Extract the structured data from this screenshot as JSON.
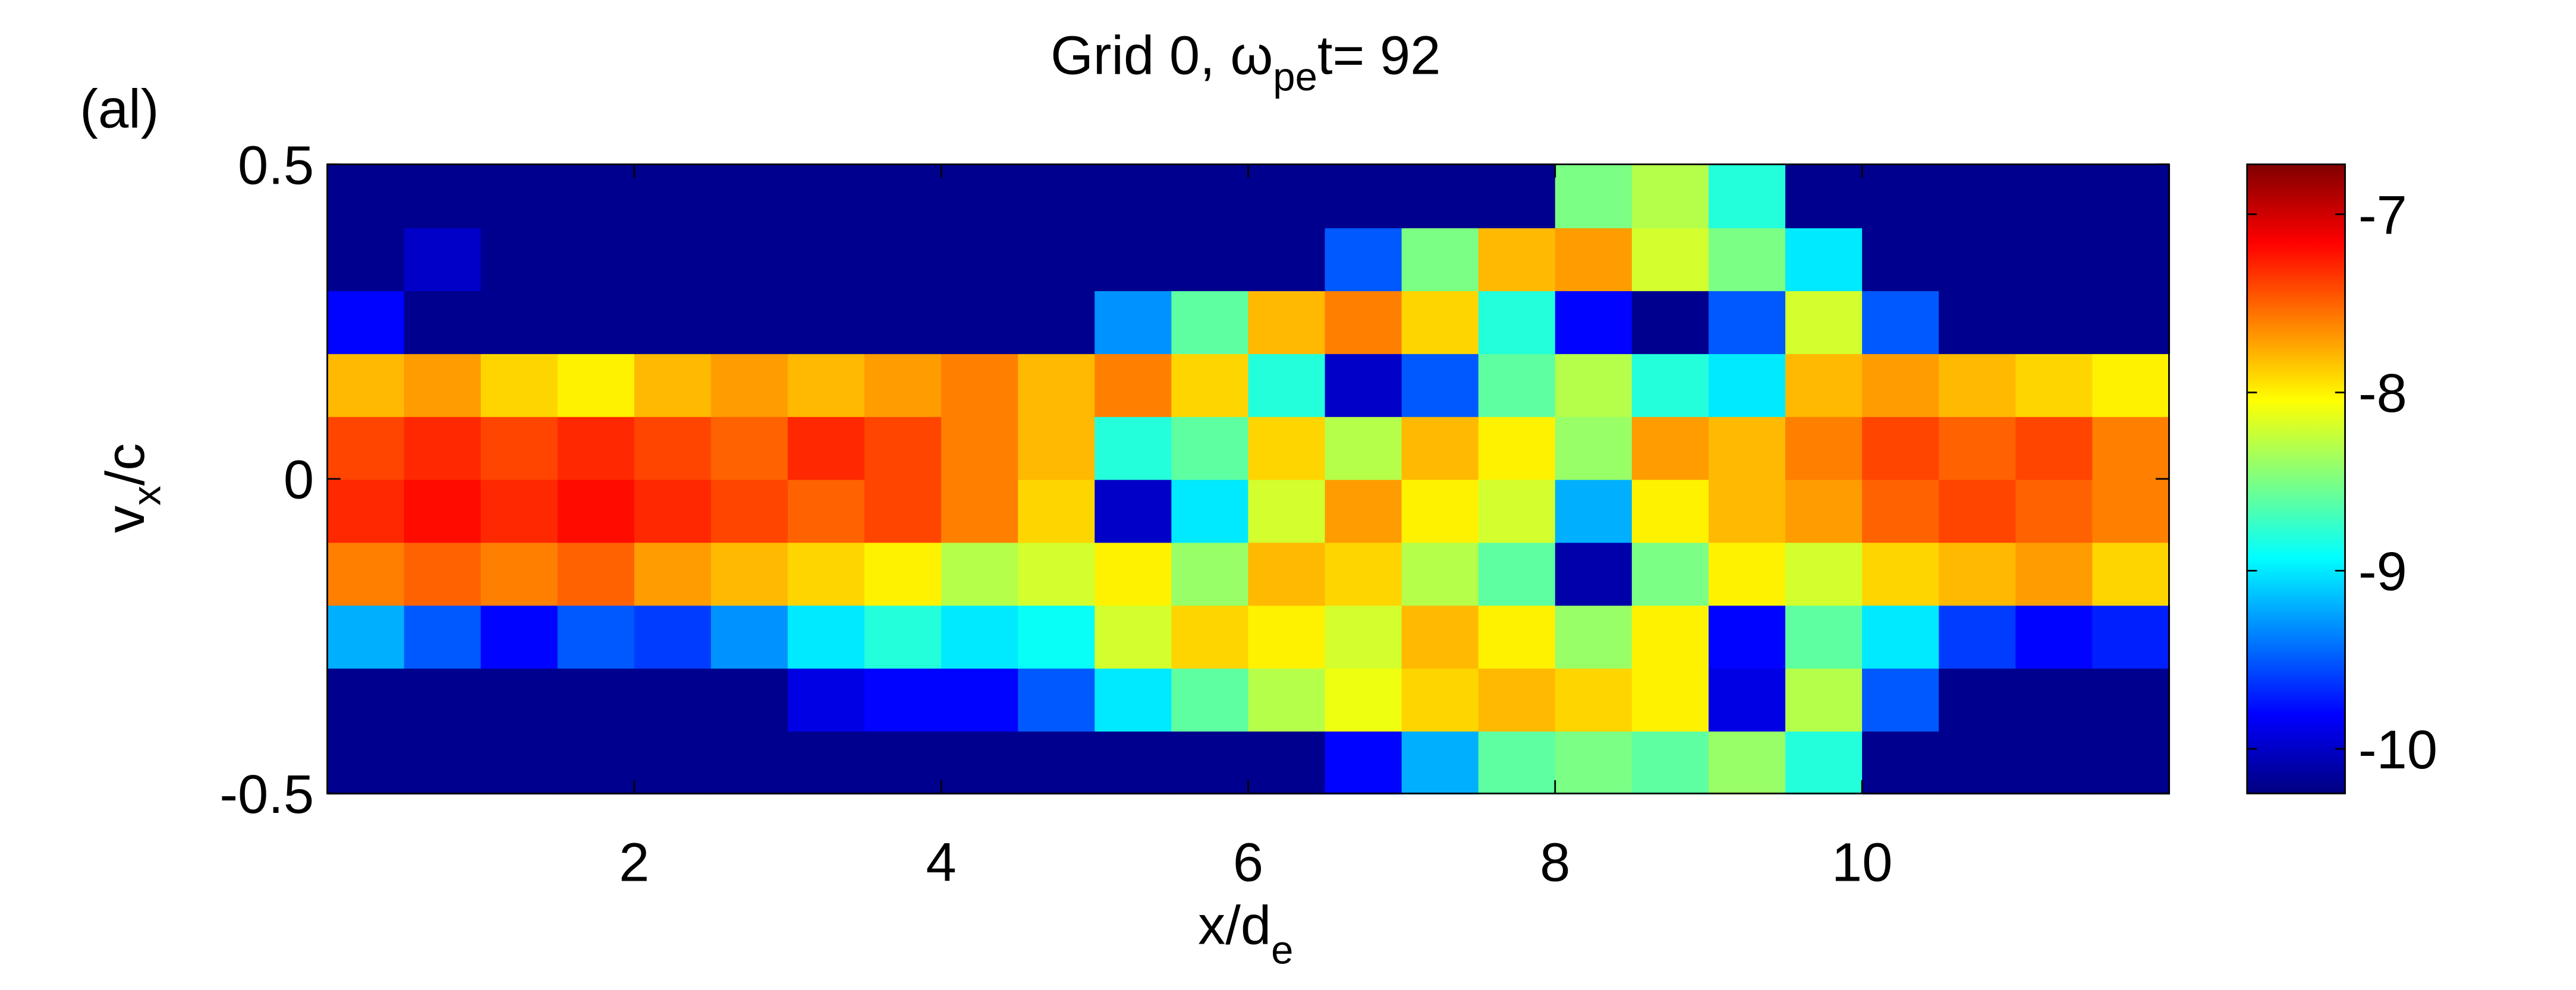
{
  "chart_data": {
    "type": "heatmap",
    "panel_label": "(al)",
    "title": {
      "main": "Grid 0,  ω",
      "sub": "pe",
      "rest": "t= 92"
    },
    "xlabel": {
      "main": "x/d",
      "sub": "e"
    },
    "ylabel": {
      "main": "v",
      "sub": "x",
      "rest": "/c"
    },
    "xlim": [
      0,
      12
    ],
    "ylim": [
      -0.5,
      0.5
    ],
    "xticks": [
      2,
      4,
      6,
      8,
      10
    ],
    "yticks": [
      -0.5,
      0,
      0.5
    ],
    "colormap": "jet",
    "clim": [
      -10.25,
      -6.72
    ],
    "cticks": [
      -10,
      -9,
      -8,
      -7
    ],
    "x": [
      0.25,
      0.75,
      1.25,
      1.75,
      2.25,
      2.75,
      3.25,
      3.75,
      4.25,
      4.75,
      5.25,
      5.75,
      6.25,
      6.75,
      7.25,
      7.75,
      8.25,
      8.75,
      9.25,
      9.75,
      10.25,
      10.75,
      11.25,
      11.75
    ],
    "y": [
      -0.45,
      -0.35,
      -0.25,
      -0.15,
      -0.05,
      0.05,
      0.15,
      0.25,
      0.35,
      0.45
    ],
    "z": [
      [
        -10.2,
        -10.2,
        -10.2,
        -10.2,
        -10.2,
        -10.2,
        -10.2,
        -10.2,
        -10.2,
        -10.2,
        -10.2,
        -10.2,
        -10.2,
        -9.8,
        -9.2,
        -8.6,
        -8.5,
        -8.6,
        -8.4,
        -8.8,
        -10.2,
        -10.2,
        -10.2,
        -10.2
      ],
      [
        -10.2,
        -10.2,
        -10.2,
        -10.2,
        -10.2,
        -10.2,
        -9.9,
        -9.8,
        -9.8,
        -9.5,
        -9.0,
        -8.6,
        -8.3,
        -8.1,
        -7.9,
        -7.8,
        -7.9,
        -8.0,
        -9.9,
        -8.3,
        -9.5,
        -10.2,
        -10.2,
        -10.2
      ],
      [
        -9.2,
        -9.5,
        -9.8,
        -9.5,
        -9.6,
        -9.3,
        -9.0,
        -8.8,
        -9.0,
        -8.9,
        -8.2,
        -7.9,
        -8.0,
        -8.2,
        -7.8,
        -8.0,
        -8.4,
        -8.0,
        -9.8,
        -8.6,
        -9.0,
        -9.6,
        -9.8,
        -9.7
      ],
      [
        -7.6,
        -7.5,
        -7.6,
        -7.5,
        -7.7,
        -7.8,
        -7.9,
        -8.0,
        -8.3,
        -8.2,
        -8.0,
        -8.4,
        -7.8,
        -7.9,
        -8.3,
        -8.6,
        -10.1,
        -8.5,
        -8.0,
        -8.2,
        -7.9,
        -7.8,
        -7.7,
        -7.9
      ],
      [
        -7.3,
        -7.2,
        -7.3,
        -7.2,
        -7.3,
        -7.4,
        -7.5,
        -7.4,
        -7.6,
        -7.9,
        -10.0,
        -9.0,
        -8.2,
        -7.7,
        -8.0,
        -8.2,
        -9.2,
        -8.0,
        -7.8,
        -7.7,
        -7.5,
        -7.4,
        -7.5,
        -7.6
      ],
      [
        -7.4,
        -7.3,
        -7.4,
        -7.3,
        -7.4,
        -7.5,
        -7.3,
        -7.4,
        -7.6,
        -7.8,
        -8.8,
        -8.6,
        -7.9,
        -8.3,
        -7.8,
        -8.0,
        -8.4,
        -7.7,
        -7.8,
        -7.6,
        -7.4,
        -7.5,
        -7.4,
        -7.6
      ],
      [
        -7.8,
        -7.7,
        -7.9,
        -8.0,
        -7.8,
        -7.7,
        -7.8,
        -7.7,
        -7.6,
        -7.8,
        -7.6,
        -7.9,
        -8.8,
        -10.0,
        -9.5,
        -8.6,
        -8.3,
        -8.8,
        -9.0,
        -7.8,
        -7.7,
        -7.8,
        -7.9,
        -8.0
      ],
      [
        -9.8,
        -10.2,
        -10.2,
        -10.2,
        -10.2,
        -10.2,
        -10.2,
        -10.2,
        -10.2,
        -10.2,
        -9.3,
        -8.6,
        -7.8,
        -7.6,
        -7.9,
        -8.8,
        -9.8,
        -10.2,
        -9.5,
        -8.2,
        -9.5,
        -10.2,
        -10.2,
        -10.2
      ],
      [
        -10.2,
        -10.0,
        -10.2,
        -10.2,
        -10.2,
        -10.2,
        -10.2,
        -10.2,
        -10.2,
        -10.2,
        -10.2,
        -10.2,
        -10.2,
        -9.5,
        -8.5,
        -7.8,
        -7.7,
        -8.2,
        -8.5,
        -9.0,
        -10.2,
        -10.2,
        -10.2,
        -10.2
      ],
      [
        -10.2,
        -10.2,
        -10.2,
        -10.2,
        -10.2,
        -10.2,
        -10.2,
        -10.2,
        -10.2,
        -10.2,
        -10.2,
        -10.2,
        -10.2,
        -10.2,
        -10.2,
        -10.2,
        -8.5,
        -8.3,
        -8.8,
        -10.2,
        -10.2,
        -10.2,
        -10.2,
        -10.2
      ]
    ]
  }
}
